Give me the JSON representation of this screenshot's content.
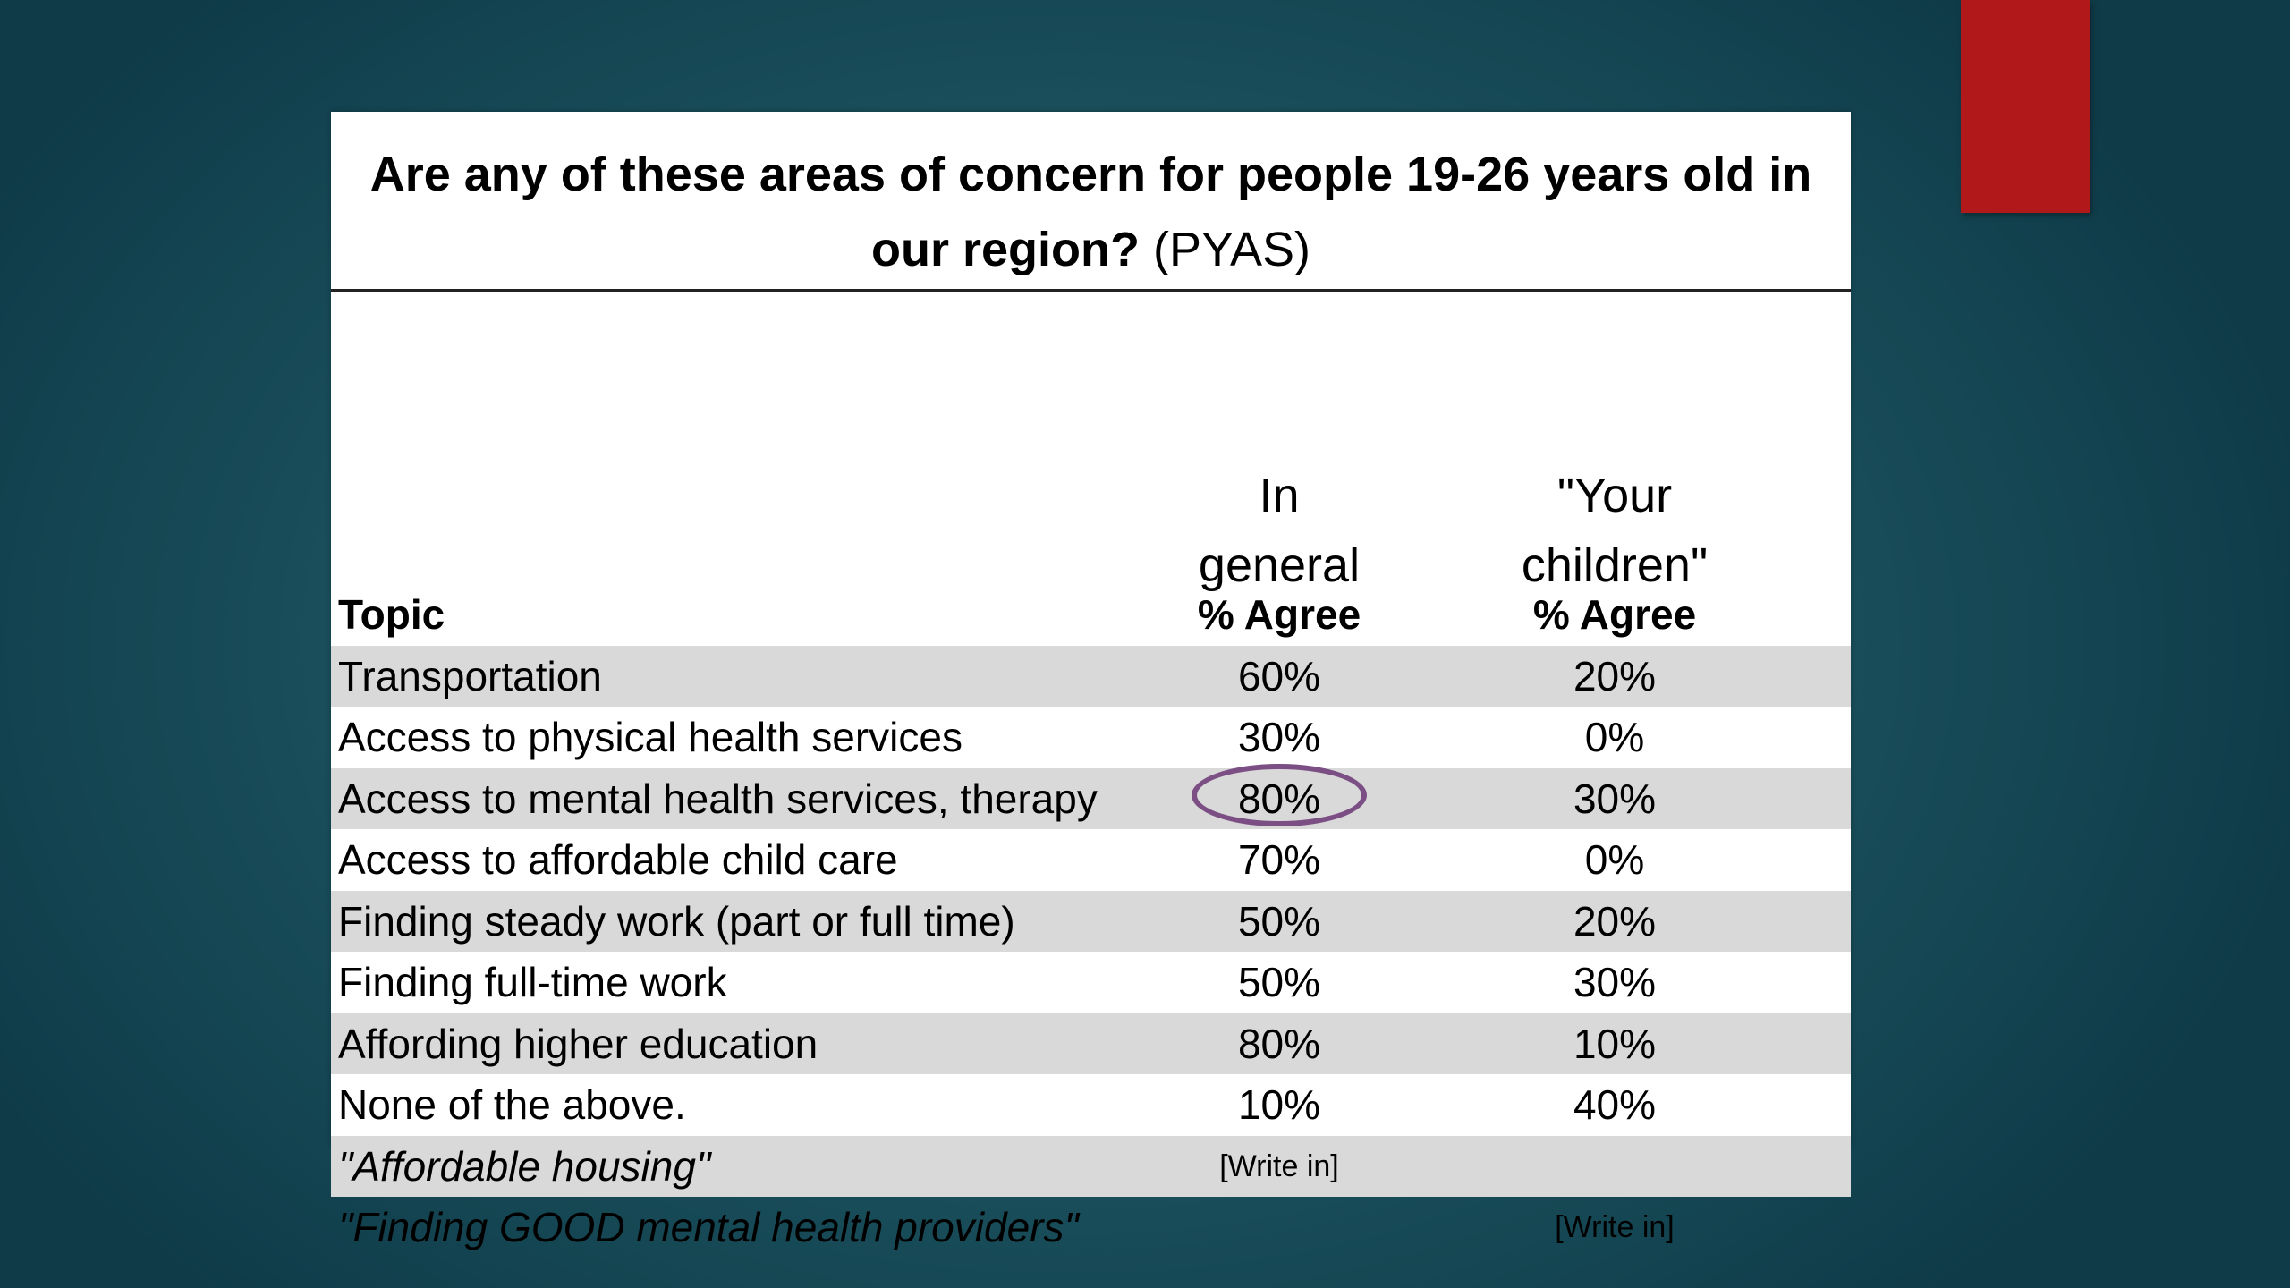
{
  "slide": {
    "title_bold": "Are any of these areas of concern for people 19-26 years old in our region?",
    "title_suffix": "(PYAS)",
    "column_groups": [
      "In general",
      "\"Your children\""
    ],
    "header": {
      "topic": "Topic",
      "col1": "% Agree",
      "col2": "% Agree"
    },
    "rows": [
      {
        "topic": "Transportation",
        "general": "60%",
        "children": "20%"
      },
      {
        "topic": "Access to physical health services",
        "general": "30%",
        "children": "0%"
      },
      {
        "topic": "Access to mental health services, therapy",
        "general": "80%",
        "children": "30%"
      },
      {
        "topic": "Access to affordable child care",
        "general": "70%",
        "children": "0%"
      },
      {
        "topic": "Finding steady work (part or full time)",
        "general": "50%",
        "children": "20%"
      },
      {
        "topic": "Finding full-time work",
        "general": "50%",
        "children": "30%"
      },
      {
        "topic": "Affording higher education",
        "general": "80%",
        "children": "10%"
      },
      {
        "topic": "None of the above.",
        "general": "10%",
        "children": "40%"
      },
      {
        "topic": "\"Affordable housing\"",
        "general": "[Write in]",
        "children": ""
      },
      {
        "topic": "\"Finding GOOD mental health providers\"",
        "general": "",
        "children": "[Write in]"
      }
    ],
    "highlight_color": "#7b4e84",
    "accent_color": "#b0181a"
  }
}
